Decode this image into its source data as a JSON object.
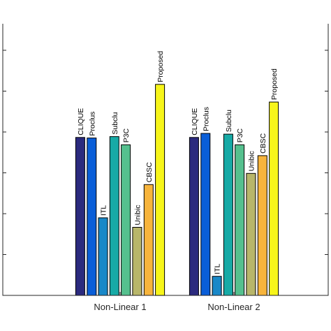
{
  "chart_data": {
    "type": "bar",
    "categories": [
      "Non-Linear 1",
      "Non-Linear 2"
    ],
    "series": [
      {
        "name": "CLIQUE",
        "color": "#2b2a7e",
        "values": [
          0.58,
          0.58
        ]
      },
      {
        "name": "Proclus",
        "color": "#0a5ed8",
        "values": [
          0.578,
          0.595
        ]
      },
      {
        "name": "ITL",
        "color": "#1988c8",
        "values": [
          0.285,
          0.07
        ]
      },
      {
        "name": "Subclu",
        "color": "#17aaa6",
        "values": [
          0.583,
          0.592
        ]
      },
      {
        "name": "P3C",
        "color": "#55c08e",
        "values": [
          0.553,
          0.553
        ]
      },
      {
        "name": "Unibic",
        "color": "#b8b66a",
        "values": [
          0.25,
          0.448
        ]
      },
      {
        "name": "CBSC",
        "color": "#f7b43c",
        "values": [
          0.407,
          0.513
        ]
      },
      {
        "name": "Proposed",
        "color": "#f7f51a",
        "values": [
          0.775,
          0.71
        ]
      }
    ],
    "ylim": [
      0,
      1
    ],
    "yticks": [
      0,
      0.15,
      0.3,
      0.45,
      0.6,
      0.75,
      0.9
    ],
    "ytick_labels_visible": false,
    "grid": false,
    "legend": "none; series names printed vertically above each bar",
    "title": "",
    "xlabel": "",
    "ylabel": ""
  }
}
